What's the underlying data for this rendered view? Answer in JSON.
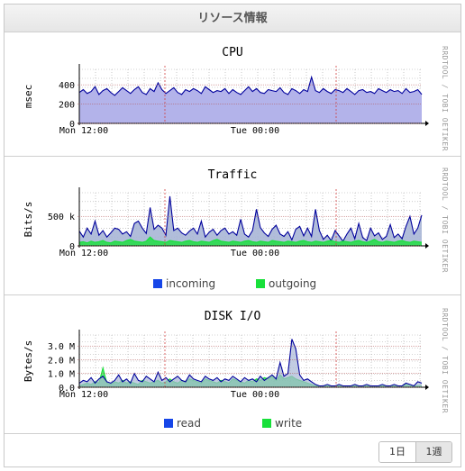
{
  "panel": {
    "title": "リソース情報"
  },
  "watermark": "RRDTOOL / TOBI OETIKER",
  "colors": {
    "grid": "#a8a8a8",
    "cpu_fill": "#b3b3ea",
    "cpu_line": "#00009c",
    "incoming": "#1646e8",
    "outgoing": "#18e03a",
    "read": "#1646e8",
    "write": "#18e03a",
    "area_fill": "#a8b6d6"
  },
  "chart_data": [
    {
      "id": "cpu",
      "type": "area",
      "title": "CPU",
      "ylabel": "msec",
      "ytick_labels": [
        "400",
        "200",
        "0"
      ],
      "ytick_values": [
        400,
        200,
        0
      ],
      "ylim": [
        0,
        560
      ],
      "xtick_labels": [
        "Mon 12:00",
        "Tue 00:00"
      ],
      "grid": true,
      "series": [
        {
          "values": [
            320,
            350,
            310,
            330,
            380,
            300,
            340,
            360,
            320,
            290,
            330,
            370,
            340,
            310,
            350,
            380,
            320,
            300,
            360,
            330,
            420,
            350,
            310,
            340,
            370,
            320,
            300,
            350,
            330,
            360,
            340,
            310,
            380,
            350,
            320,
            340,
            330,
            360,
            310,
            350,
            320,
            300,
            340,
            380,
            330,
            360,
            320,
            310,
            350,
            340,
            330,
            370,
            320,
            300,
            360,
            340,
            310,
            350,
            330,
            480,
            340,
            320,
            360,
            330,
            310,
            350,
            340,
            320,
            360,
            330,
            300,
            340,
            350,
            320,
            330,
            310,
            360,
            340,
            320,
            350,
            330,
            340,
            310,
            360,
            320,
            330,
            350,
            300
          ]
        }
      ]
    },
    {
      "id": "traffic",
      "type": "area",
      "title": "Traffic",
      "ylabel": "Bits/s",
      "ytick_labels": [
        "500 k",
        "0"
      ],
      "ytick_values": [
        500,
        0
      ],
      "ylim": [
        0,
        900
      ],
      "xtick_labels": [
        "Mon 12:00",
        "Tue 00:00"
      ],
      "grid": true,
      "legend": [
        {
          "key": "incoming",
          "label": "incoming"
        },
        {
          "key": "outgoing",
          "label": "outgoing"
        }
      ],
      "series": [
        {
          "name": "incoming",
          "values": [
            250,
            150,
            300,
            200,
            420,
            180,
            260,
            150,
            220,
            300,
            280,
            200,
            240,
            160,
            380,
            420,
            300,
            210,
            650,
            280,
            350,
            300,
            180,
            840,
            260,
            300,
            220,
            180,
            250,
            300,
            200,
            420,
            150,
            230,
            280,
            180,
            260,
            300,
            200,
            240,
            180,
            450,
            200,
            150,
            260,
            620,
            310,
            220,
            160,
            280,
            350,
            200,
            160,
            240,
            100,
            280,
            330,
            170,
            300,
            160,
            620,
            260,
            110,
            180,
            90,
            260,
            170,
            80,
            200,
            300,
            120,
            380,
            140,
            90,
            300,
            170,
            220,
            110,
            160,
            360,
            140,
            200,
            120,
            330,
            500,
            200,
            300,
            520
          ]
        },
        {
          "name": "outgoing",
          "values": [
            60,
            70,
            50,
            80,
            60,
            70,
            90,
            60,
            50,
            80,
            70,
            60,
            90,
            110,
            80,
            70,
            60,
            80,
            150,
            90,
            80,
            70,
            60,
            90,
            80,
            70,
            60,
            80,
            90,
            70,
            60,
            80,
            70,
            60,
            90,
            110,
            80,
            70,
            60,
            80,
            70,
            60,
            80,
            90,
            70,
            60,
            80,
            70,
            60,
            90,
            80,
            70,
            60,
            80,
            70,
            60,
            80,
            90,
            70,
            60,
            80,
            70,
            60,
            80,
            90,
            70,
            60,
            80,
            70,
            60,
            80,
            90,
            70,
            60,
            80,
            110,
            70,
            60,
            80,
            70,
            60,
            80,
            90,
            70,
            60,
            80,
            70,
            60
          ]
        }
      ]
    },
    {
      "id": "disk",
      "type": "area",
      "title": "DISK I/O",
      "ylabel": "Bytes/s",
      "ytick_labels": [
        "3.0 M",
        "2.0 M",
        "1.0 M",
        "0.0"
      ],
      "ytick_values": [
        3.0,
        2.0,
        1.0,
        0.0
      ],
      "ylim": [
        0,
        3.8
      ],
      "xtick_labels": [
        "Mon 12:00",
        "Tue 00:00"
      ],
      "grid": true,
      "legend": [
        {
          "key": "read",
          "label": "read"
        },
        {
          "key": "write",
          "label": "write"
        }
      ],
      "series": [
        {
          "name": "read",
          "values": [
            0.3,
            0.5,
            0.4,
            0.7,
            0.3,
            0.6,
            0.8,
            0.4,
            0.3,
            0.5,
            0.9,
            0.4,
            0.6,
            0.3,
            1.0,
            0.5,
            0.4,
            0.8,
            0.6,
            0.4,
            1.1,
            0.5,
            0.7,
            0.4,
            0.6,
            0.8,
            0.5,
            0.4,
            0.9,
            0.6,
            0.5,
            0.4,
            0.8,
            0.6,
            0.5,
            0.7,
            0.4,
            0.6,
            0.5,
            0.8,
            0.6,
            0.4,
            0.7,
            0.5,
            0.6,
            0.4,
            0.8,
            0.5,
            0.7,
            0.9,
            0.6,
            1.8,
            0.8,
            1.0,
            3.5,
            2.8,
            0.9,
            0.5,
            0.6,
            0.4,
            0.2,
            0.1,
            0.1,
            0.2,
            0.1,
            0.1,
            0.2,
            0.1,
            0.1,
            0.1,
            0.2,
            0.1,
            0.1,
            0.2,
            0.1,
            0.1,
            0.1,
            0.2,
            0.1,
            0.1,
            0.2,
            0.1,
            0.1,
            0.3,
            0.2,
            0.1,
            0.4,
            0.3
          ]
        },
        {
          "name": "write",
          "values": [
            0.1,
            0.2,
            0.3,
            0.2,
            0.4,
            0.3,
            1.4,
            0.3,
            0.2,
            0.4,
            0.3,
            0.5,
            0.3,
            0.4,
            0.3,
            0.2,
            0.5,
            0.4,
            0.3,
            0.4,
            0.5,
            0.3,
            0.4,
            0.6,
            0.4,
            0.3,
            0.5,
            0.4,
            0.6,
            0.5,
            0.4,
            0.3,
            0.6,
            0.5,
            0.4,
            0.3,
            0.5,
            0.4,
            0.3,
            0.6,
            0.5,
            0.4,
            0.3,
            0.5,
            0.4,
            0.6,
            0.5,
            0.7,
            0.6,
            0.8,
            0.5,
            0.9,
            0.6,
            0.7,
            0.8,
            0.6,
            0.5,
            0.4,
            0.3,
            0.2,
            0.1,
            0.1,
            0.1,
            0.1,
            0.1,
            0.1,
            0.1,
            0.1,
            0.1,
            0.1,
            0.1,
            0.1,
            0.1,
            0.1,
            0.1,
            0.1,
            0.1,
            0.1,
            0.1,
            0.1,
            0.1,
            0.1,
            0.1,
            0.2,
            0.1,
            0.1,
            0.1,
            0.1
          ]
        }
      ]
    }
  ],
  "range_buttons": [
    {
      "label": "1日",
      "active": false
    },
    {
      "label": "1週",
      "active": true
    }
  ]
}
